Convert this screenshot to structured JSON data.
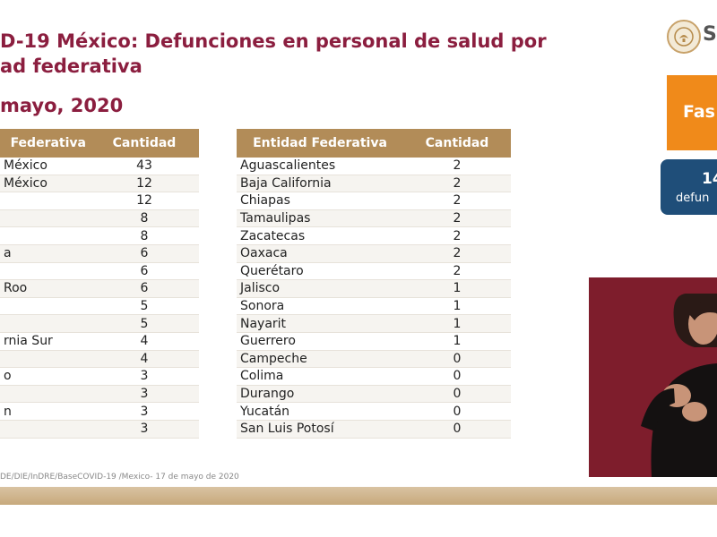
{
  "title": {
    "line1": "D-19 México: Defunciones en personal de salud por",
    "line2": "ad federativa",
    "date": "mayo, 2020"
  },
  "table_left": {
    "headers": [
      "Federativa",
      "Cantidad"
    ],
    "rows": [
      {
        "entidad": "México",
        "cantidad": "43"
      },
      {
        "entidad": "México",
        "cantidad": "12"
      },
      {
        "entidad": "",
        "cantidad": "12"
      },
      {
        "entidad": "",
        "cantidad": "8"
      },
      {
        "entidad": "",
        "cantidad": "8"
      },
      {
        "entidad": "a",
        "cantidad": "6"
      },
      {
        "entidad": "",
        "cantidad": "6"
      },
      {
        "entidad": "Roo",
        "cantidad": "6"
      },
      {
        "entidad": "",
        "cantidad": "5"
      },
      {
        "entidad": "",
        "cantidad": "5"
      },
      {
        "entidad": "rnia Sur",
        "cantidad": "4"
      },
      {
        "entidad": "",
        "cantidad": "4"
      },
      {
        "entidad": "o",
        "cantidad": "3"
      },
      {
        "entidad": "",
        "cantidad": "3"
      },
      {
        "entidad": "n",
        "cantidad": "3"
      },
      {
        "entidad": "",
        "cantidad": "3"
      }
    ]
  },
  "table_right": {
    "headers": [
      "Entidad Federativa",
      "Cantidad"
    ],
    "rows": [
      {
        "entidad": "Aguascalientes",
        "cantidad": "2"
      },
      {
        "entidad": "Baja California",
        "cantidad": "2"
      },
      {
        "entidad": "Chiapas",
        "cantidad": "2"
      },
      {
        "entidad": "Tamaulipas",
        "cantidad": "2"
      },
      {
        "entidad": "Zacatecas",
        "cantidad": "2"
      },
      {
        "entidad": "Oaxaca",
        "cantidad": "2"
      },
      {
        "entidad": "Querétaro",
        "cantidad": "2"
      },
      {
        "entidad": "Jalisco",
        "cantidad": "1"
      },
      {
        "entidad": "Sonora",
        "cantidad": "1"
      },
      {
        "entidad": "Nayarit",
        "cantidad": "1"
      },
      {
        "entidad": "Guerrero",
        "cantidad": "1"
      },
      {
        "entidad": "Campeche",
        "cantidad": "0"
      },
      {
        "entidad": "Colima",
        "cantidad": "0"
      },
      {
        "entidad": "Durango",
        "cantidad": "0"
      },
      {
        "entidad": "Yucatán",
        "cantidad": "0"
      },
      {
        "entidad": "San Luis Potosí",
        "cantidad": "0"
      }
    ]
  },
  "sidebar": {
    "logo_text": "S",
    "orange_label": "Fas",
    "blue_number": "14",
    "blue_label": "defun"
  },
  "source": "DE/DIE/InDRE/BaseCOVID-19 /Mexico- 17 de mayo de 2020",
  "colors": {
    "title": "#8b1e3f",
    "header": "#b28c58",
    "orange": "#f08a1a",
    "blue": "#1f4e79",
    "video_bg": "#7e1d2c"
  }
}
